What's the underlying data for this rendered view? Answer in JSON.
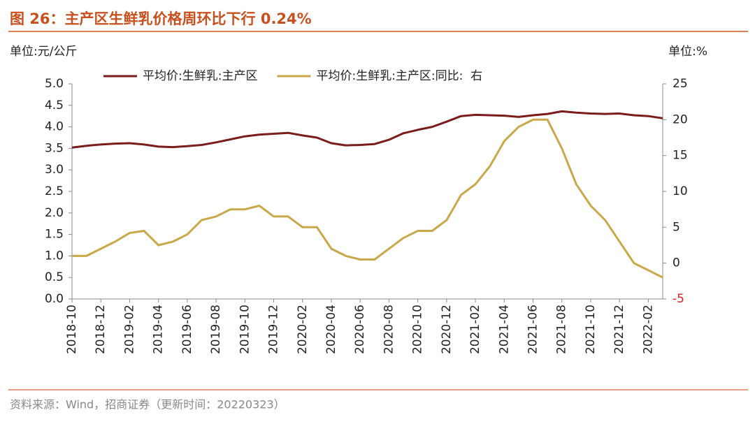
{
  "chart_data": {
    "type": "line",
    "title": "图 26：主产区生鲜乳价格周环比下行 0.24%",
    "y_unit": "单位:元/公斤",
    "y2_unit": "单位:%",
    "source": "资料来源：Wind，招商证券（更新时间：20220323）",
    "x": [
      "2018-10",
      "2018-11",
      "2018-12",
      "2019-01",
      "2019-02",
      "2019-03",
      "2019-04",
      "2019-05",
      "2019-06",
      "2019-07",
      "2019-08",
      "2019-09",
      "2019-10",
      "2019-11",
      "2019-12",
      "2020-01",
      "2020-02",
      "2020-03",
      "2020-04",
      "2020-05",
      "2020-06",
      "2020-07",
      "2020-08",
      "2020-09",
      "2020-10",
      "2020-11",
      "2020-12",
      "2021-01",
      "2021-02",
      "2021-03",
      "2021-04",
      "2021-05",
      "2021-06",
      "2021-07",
      "2021-08",
      "2021-09",
      "2021-10",
      "2021-11",
      "2021-12",
      "2022-01",
      "2022-02",
      "2022-03"
    ],
    "xlim": [
      "2018-10",
      "2022-03"
    ],
    "xticks": [
      "2018-10",
      "2018-12",
      "2019-02",
      "2019-04",
      "2019-06",
      "2019-08",
      "2019-10",
      "2019-12",
      "2020-02",
      "2020-04",
      "2020-06",
      "2020-08",
      "2020-10",
      "2020-12",
      "2021-02",
      "2021-04",
      "2021-06",
      "2021-08",
      "2021-10",
      "2021-12",
      "2022-02"
    ],
    "series": [
      {
        "name": "平均价:生鲜乳:主产区",
        "color": "#7b1c1c",
        "values": [
          3.52,
          3.56,
          3.59,
          3.61,
          3.62,
          3.59,
          3.54,
          3.53,
          3.55,
          3.58,
          3.64,
          3.71,
          3.78,
          3.82,
          3.84,
          3.86,
          3.8,
          3.75,
          3.62,
          3.57,
          3.58,
          3.6,
          3.7,
          3.85,
          3.93,
          4.0,
          4.12,
          4.25,
          4.28,
          4.27,
          4.26,
          4.23,
          4.27,
          4.3,
          4.36,
          4.33,
          4.31,
          4.3,
          4.31,
          4.27,
          4.25,
          4.2
        ]
      },
      {
        "name": "平均价:生鲜乳:主产区:同比:  右",
        "color": "#c9a84a",
        "axis": "y2",
        "values": [
          1.0,
          1.0,
          2.0,
          3.0,
          4.2,
          4.5,
          2.5,
          3.0,
          4.0,
          6.0,
          6.5,
          7.5,
          7.5,
          8.0,
          6.5,
          6.5,
          5.0,
          5.0,
          2.0,
          1.0,
          0.5,
          0.5,
          2.0,
          3.5,
          4.5,
          4.5,
          6.0,
          9.5,
          11,
          13.5,
          17,
          19,
          20,
          20,
          16,
          11,
          8,
          6,
          3,
          0,
          -1,
          -2
        ]
      }
    ],
    "ylim": [
      0,
      5
    ],
    "yticks": [
      {
        "value": 0,
        "label": "0.0"
      },
      0.5,
      {
        "value": 1,
        "label": "1.0"
      },
      1.5,
      {
        "value": 2,
        "label": "2.0"
      },
      2.5,
      {
        "value": 3,
        "label": "3.0"
      },
      3.5,
      {
        "value": 4,
        "label": "4.0"
      },
      4.5,
      {
        "value": 5,
        "label": "5.0"
      }
    ],
    "y2lim": [
      -5,
      25
    ],
    "y2ticks": [
      -5,
      0,
      5,
      10,
      15,
      20,
      25
    ],
    "negative_tick_color": "#e02020",
    "grid": false,
    "legend": "top"
  }
}
